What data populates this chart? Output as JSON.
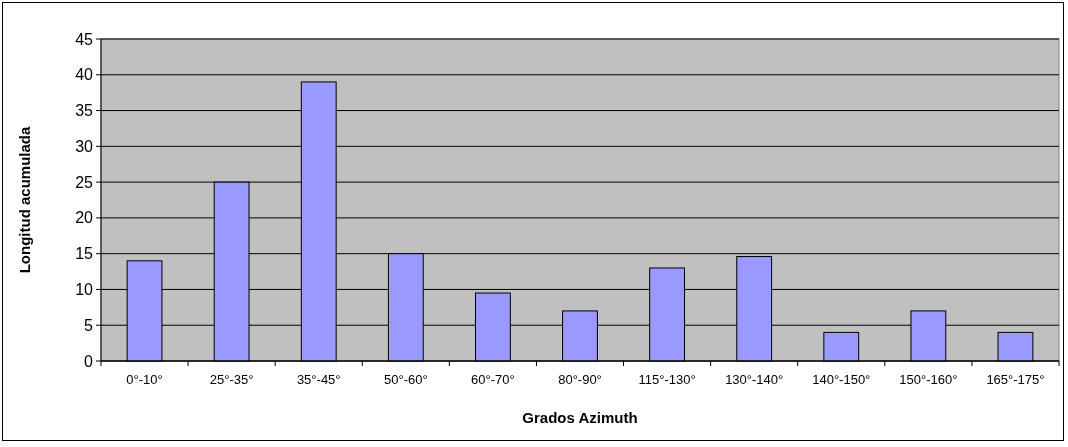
{
  "chart_data": {
    "type": "bar",
    "xlabel": "Grados Azimuth",
    "ylabel": "Longitud acumulada",
    "categories": [
      "0°-10°",
      "25°-35°",
      "35°-45°",
      "50°-60°",
      "60°-70°",
      "80°-90°",
      "115°-130°",
      "130°-140°",
      "140°-150°",
      "150°-160°",
      "165°-175°"
    ],
    "values": [
      14,
      25,
      39,
      15,
      9.5,
      7,
      13,
      14.6,
      4,
      7,
      4
    ],
    "color": "#9999ff",
    "ylim": [
      0,
      45
    ],
    "yticks": [
      0,
      5,
      10,
      15,
      20,
      25,
      30,
      35,
      40,
      45
    ],
    "grid": "y"
  }
}
